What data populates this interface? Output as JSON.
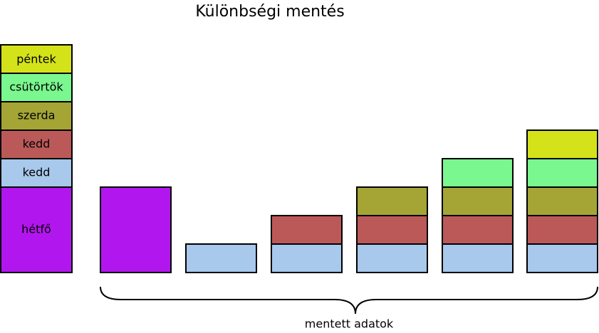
{
  "title": "Különbségi mentés",
  "legend": [
    "péntek",
    "csütörtök",
    "szerda",
    "kedd",
    "kedd",
    "hétfő"
  ],
  "brace_label": "mentett adatok"
}
